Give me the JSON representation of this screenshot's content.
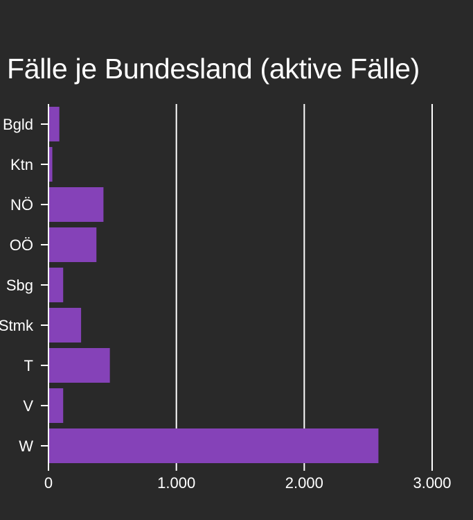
{
  "chart_data": {
    "type": "bar",
    "orientation": "horizontal",
    "title": "Fälle je Bundesland (aktive Fälle)",
    "categories": [
      "Bgld",
      "Ktn",
      "NÖ",
      "OÖ",
      "Sbg",
      "Stmk",
      "T",
      "V",
      "W"
    ],
    "values": [
      85,
      30,
      430,
      375,
      115,
      255,
      480,
      115,
      2580
    ],
    "x_ticks": [
      0,
      1000,
      2000,
      3000
    ],
    "x_tick_labels": [
      "0",
      "1.000",
      "2.000",
      "3.000"
    ],
    "xlim": [
      0,
      3000
    ],
    "xlabel": "",
    "ylabel": "",
    "grid": "vertical",
    "legend": "none"
  },
  "colors": {
    "background": "#292929",
    "bar": "#8542b8",
    "text": "#ffffff",
    "grid": "#ffffff"
  }
}
